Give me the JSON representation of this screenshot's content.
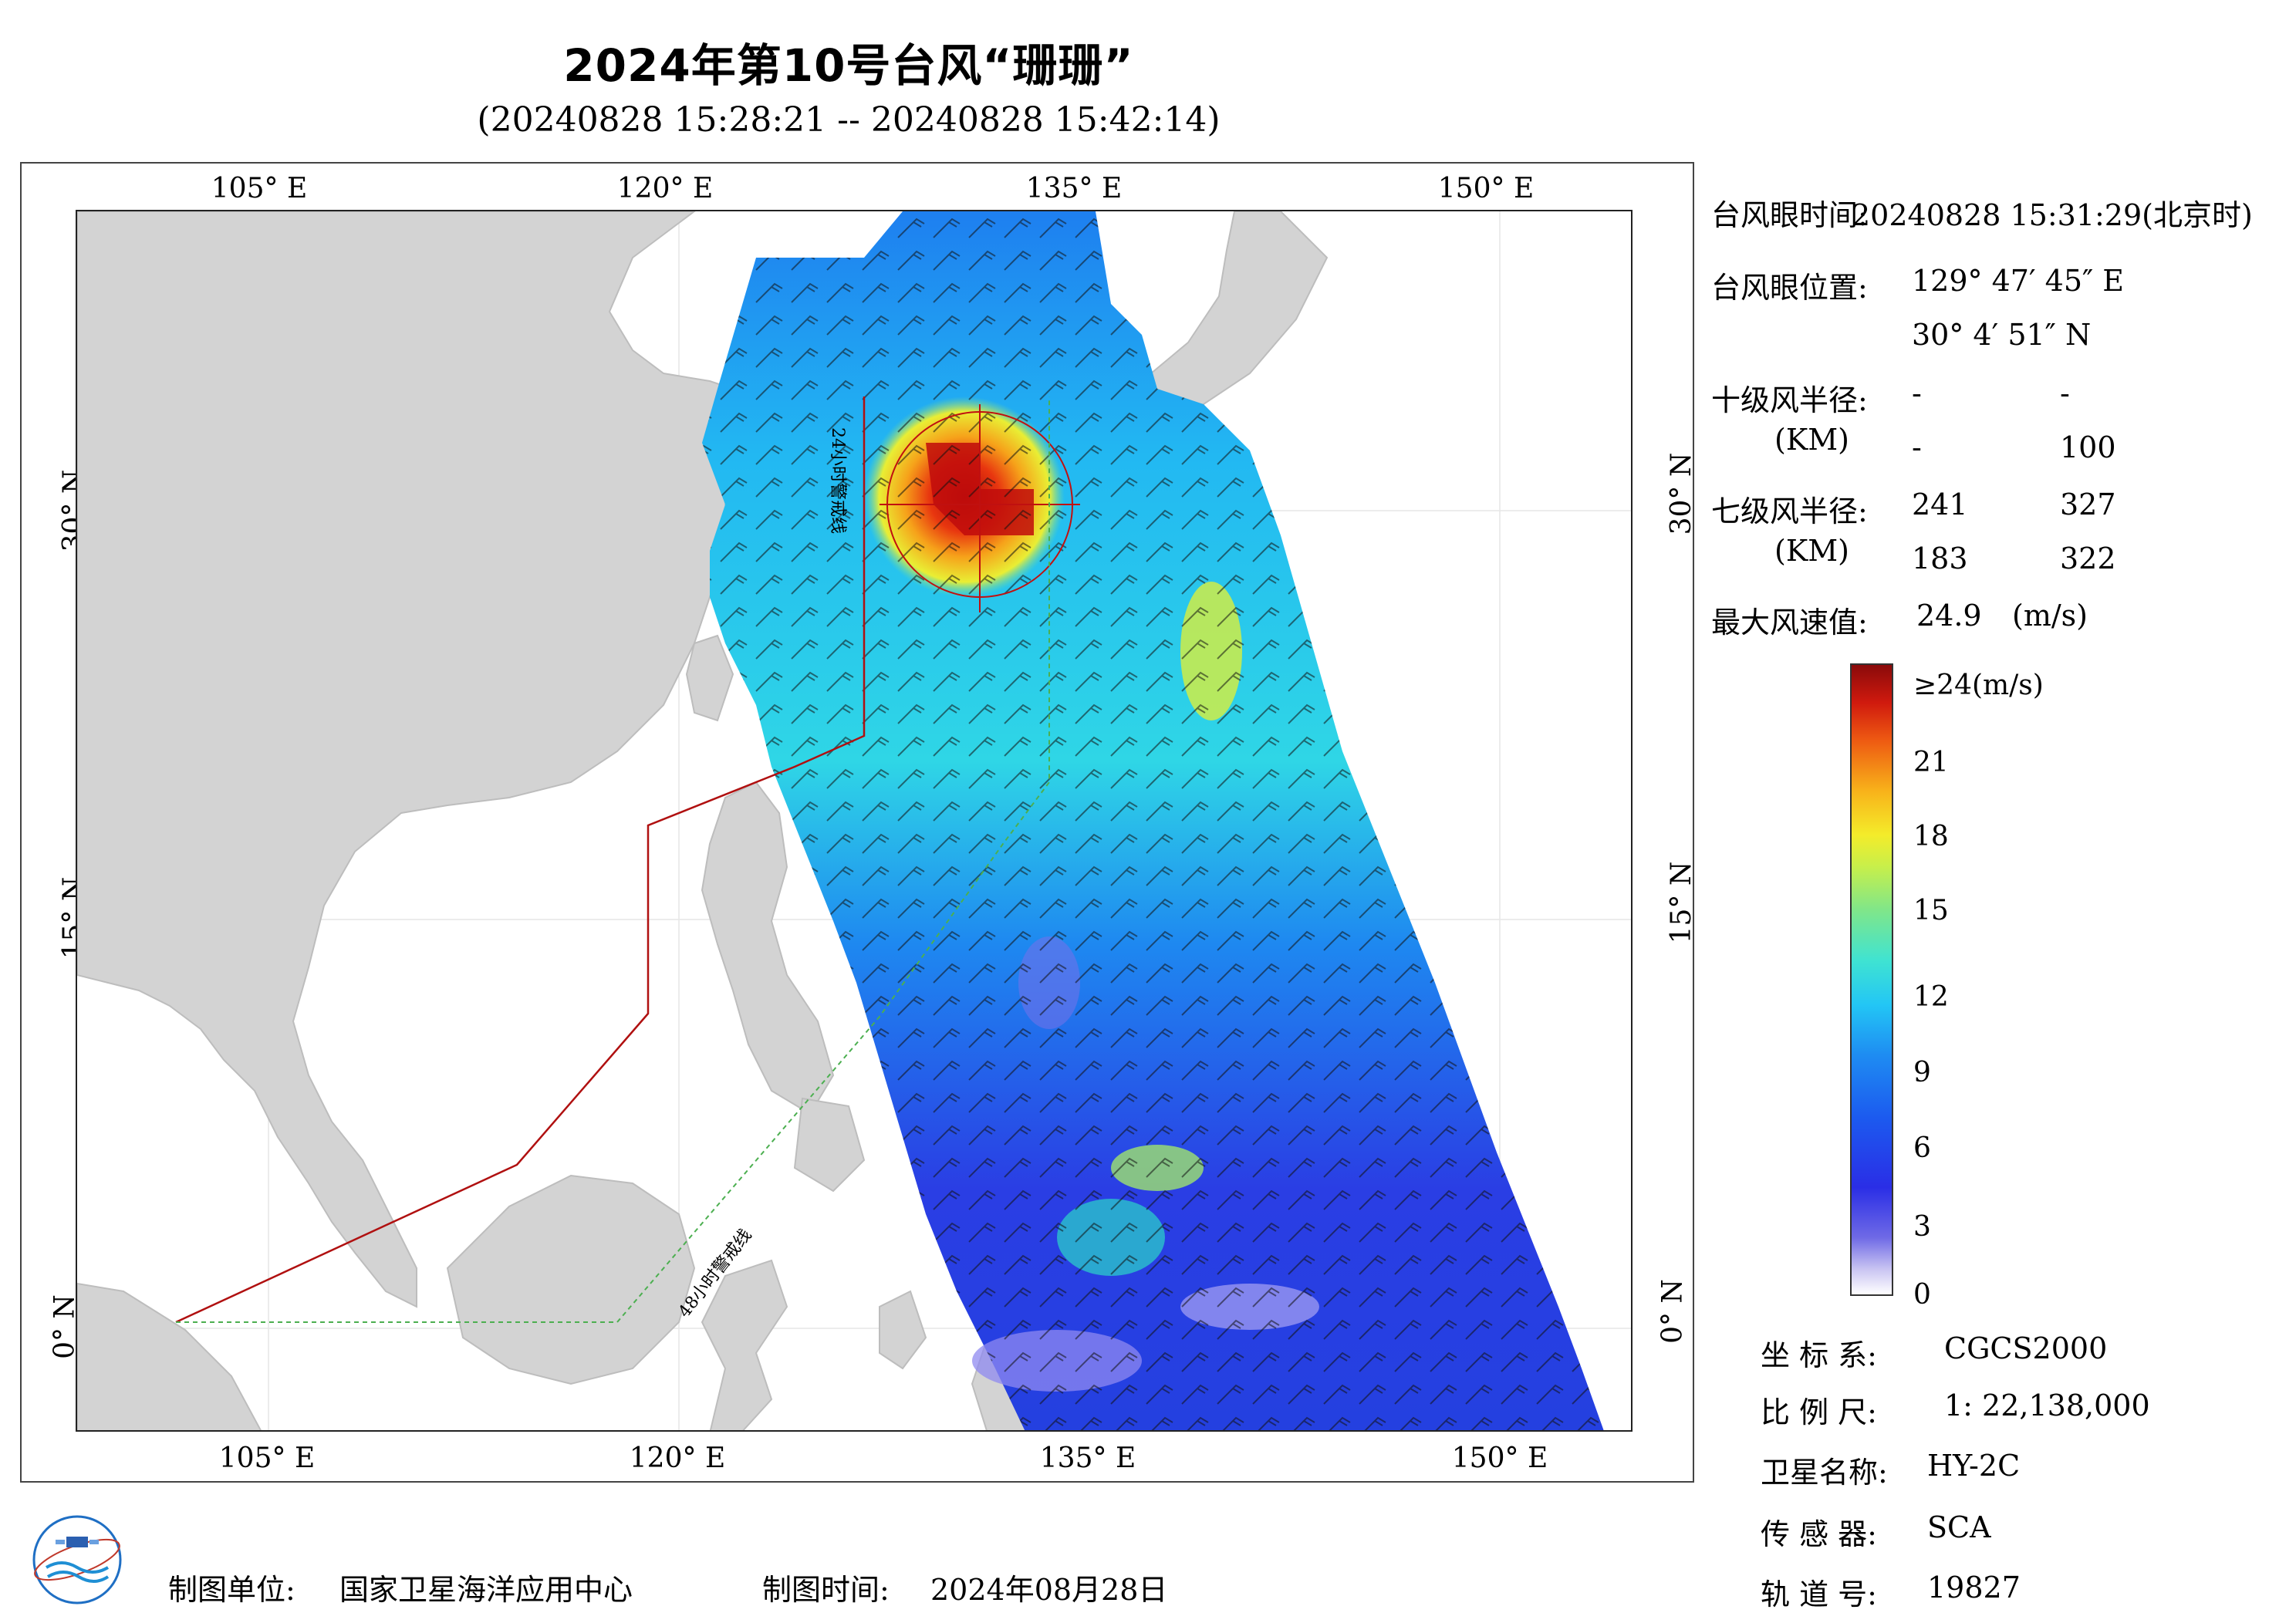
{
  "title": "2024年第10号台风“珊珊”",
  "subtitle": "(20240828 15:28:21 -- 20240828 15:42:14)",
  "map": {
    "lon_labels": [
      "105° E",
      "120° E",
      "135° E",
      "150° E"
    ],
    "lat_labels": [
      "30° N",
      "15° N",
      "0° N"
    ],
    "line_label_24h": "24小时警戒线",
    "line_label_48h": "48小时警戒线",
    "colors": {
      "land": "#d3d3d3",
      "sea": "#ffffff",
      "line_24h": "#b01010",
      "line_48h": "#4caf50"
    }
  },
  "info": {
    "eye_time_label": "台风眼时间:",
    "eye_time_value": "20240828 15:31:29(北京时)",
    "eye_pos_label": "台风眼位置:",
    "eye_lon": "129° 47′ 45″ E",
    "eye_lat": "30° 4′ 51″ N",
    "r10_label": "十级风半径:",
    "r10_unit": "(KM)",
    "r10_values": [
      "-",
      "-",
      "-",
      "100"
    ],
    "r7_label": "七级风半径:",
    "r7_unit": "(KM)",
    "r7_values": [
      "241",
      "327",
      "183",
      "322"
    ],
    "max_wind_label": "最大风速值:",
    "max_wind_value": "24.9",
    "max_wind_unit": "(m/s)"
  },
  "legend": {
    "top_label": "≥24(m/s)",
    "ticks": [
      "21",
      "18",
      "15",
      "12",
      "9",
      "6",
      "3",
      "0"
    ]
  },
  "meta": {
    "crs_label": "坐 标 系:",
    "crs_value": "CGCS2000",
    "scale_label": "比 例 尺:",
    "scale_value": "1: 22,138,000",
    "satellite_label": "卫星名称:",
    "satellite_value": "HY-2C",
    "sensor_label": "传 感 器:",
    "sensor_value": "SCA",
    "orbit_label": "轨 道 号:",
    "orbit_value": "19827"
  },
  "footer": {
    "unit_label": "制图单位:",
    "unit_value": "国家卫星海洋应用中心",
    "time_label": "制图时间:",
    "time_value": "2024年08月28日"
  }
}
